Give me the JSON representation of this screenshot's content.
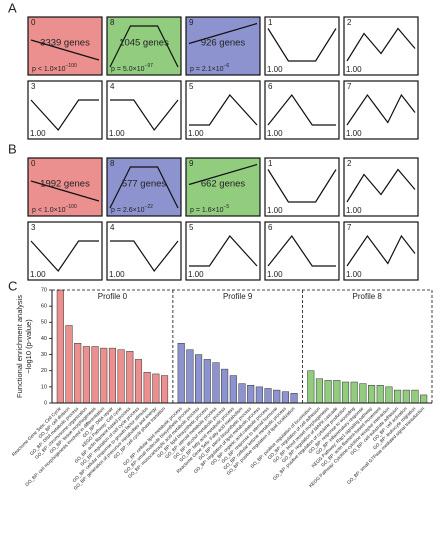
{
  "panels": [
    {
      "label": "A",
      "profiles": [
        {
          "id": "0",
          "genes": "3339 genes",
          "p_base": "p < 1.0×10",
          "p_exp": "−100",
          "color": "#ec8f8f"
        },
        {
          "id": "8",
          "genes": "1045 genes",
          "p_base": "p = 5.0×10",
          "p_exp": "−97",
          "color": "#92cc7e"
        },
        {
          "id": "9",
          "genes": "926 genes",
          "p_base": "p = 2.1×10",
          "p_exp": "−6",
          "color": "#8d93cf"
        },
        {
          "id": "1",
          "scale": "1.00"
        },
        {
          "id": "2",
          "scale": "1.00"
        },
        {
          "id": "3",
          "scale": "1.00"
        },
        {
          "id": "4",
          "scale": "1.00"
        },
        {
          "id": "5",
          "scale": "1.00"
        },
        {
          "id": "6",
          "scale": "1.00"
        },
        {
          "id": "7",
          "scale": "1.00"
        }
      ]
    },
    {
      "label": "B",
      "profiles": [
        {
          "id": "0",
          "genes": "1992 genes",
          "p_base": "p < 1.0×10",
          "p_exp": "−100",
          "color": "#ec8f8f"
        },
        {
          "id": "8",
          "genes": "577 genes",
          "p_base": "p = 2.6×10",
          "p_exp": "−22",
          "color": "#8d93cf"
        },
        {
          "id": "9",
          "genes": "662 genes",
          "p_base": "p = 1.6×10",
          "p_exp": "−5",
          "color": "#92cc7e"
        },
        {
          "id": "1",
          "scale": "1.00"
        },
        {
          "id": "2",
          "scale": "1.00"
        },
        {
          "id": "3",
          "scale": "1.00"
        },
        {
          "id": "4",
          "scale": "1.00"
        },
        {
          "id": "5",
          "scale": "1.00"
        },
        {
          "id": "6",
          "scale": "1.00"
        },
        {
          "id": "7",
          "scale": "1.00"
        }
      ]
    }
  ],
  "chart_data": {
    "type": "bar",
    "panel_label": "C",
    "y_label": [
      "Functional enrichment analysis",
      "−log10 (p-value)"
    ],
    "ylim": [
      0,
      70
    ],
    "yticks": [
      0,
      10,
      20,
      30,
      40,
      50,
      60,
      70
    ],
    "groups": [
      {
        "name": "Profile 0",
        "color": "#ec8f8f",
        "categories": [
          "Reactome Gene Sets: Cell Cycle",
          "GO_BP: cell division",
          "GO_BP: DNA metabolic process",
          "GO_BP: chromosome organization",
          "GO_BP: tissue morphogenesis",
          "GO_BP: cell morphogenesis involved in differentiation",
          "GO_BP: DNA repair",
          "KEGG Pathway: Cell cycle",
          "GO_BP: actin filament-based process",
          "GO_BP: regulation of cell cycle process",
          "GO_BP: cellular response to growth factor stimulus",
          "GO_BP: generation of precursor metabolites and energy",
          "GO_BP: cell cycle phase transition"
        ],
        "values": [
          70,
          48,
          37,
          35,
          35,
          34,
          34,
          33,
          32,
          27,
          19,
          18,
          17
        ]
      },
      {
        "name": "Profile 9",
        "color": "#8d93cf",
        "categories": [
          "GO_BP: cellular lipid metabolic process",
          "GO_BP: small molecule biosynthetic process",
          "GO_BP: monocarboxylic acid metabolic process",
          "GO_BP: lipid biosynthetic process",
          "GO_BP: steroid metabolic process",
          "GO_BP: alcohol metabolic process",
          "GO_BP: fatty acid metabolic process",
          "Reactome Gene Sets: Fatty acid metabolism",
          "GO_BP: sterol biosynthetic process",
          "GO_BP: regulation of lipid metabolic process",
          "GO_BP: organic acid catabolic process",
          "GO_BP: response to steroid hormone",
          "GO_BP: cellular ketone metabolic process",
          "GO_BP: positive regulation of lipid localization"
        ],
        "values": [
          37,
          33,
          30,
          27,
          25,
          21,
          17,
          12,
          11,
          10,
          9,
          8,
          7,
          6
        ]
      },
      {
        "name": "Profile 8",
        "color": "#92cc7e",
        "categories": [
          "GO_BP: positive regulation of locomotion",
          "GO_BP: regulation of cell adhesion",
          "GO_BP: blood vessel morphogenesis",
          "GO_BP: regulation of MAPK cascade",
          "GO_BP: positive regulation of cytokine production",
          "GO_BP: response to wounding",
          "GO_BP: inflammatory response",
          "KEGG Pathway: Rap1 signaling pathway",
          "GO_BP: actin filament-based movement",
          "KEGG Pathway: Cytokine-cytokine receptor interaction",
          "GO_BP: cell-substrate adhesion",
          "GO_BP: cell activation",
          "GO_BP: leukocyte migration",
          "GO_BP: small GTPase mediated signal transduction"
        ],
        "values": [
          20,
          15,
          14,
          14,
          13,
          13,
          12,
          11,
          11,
          10,
          8,
          8,
          8,
          5
        ]
      }
    ]
  }
}
